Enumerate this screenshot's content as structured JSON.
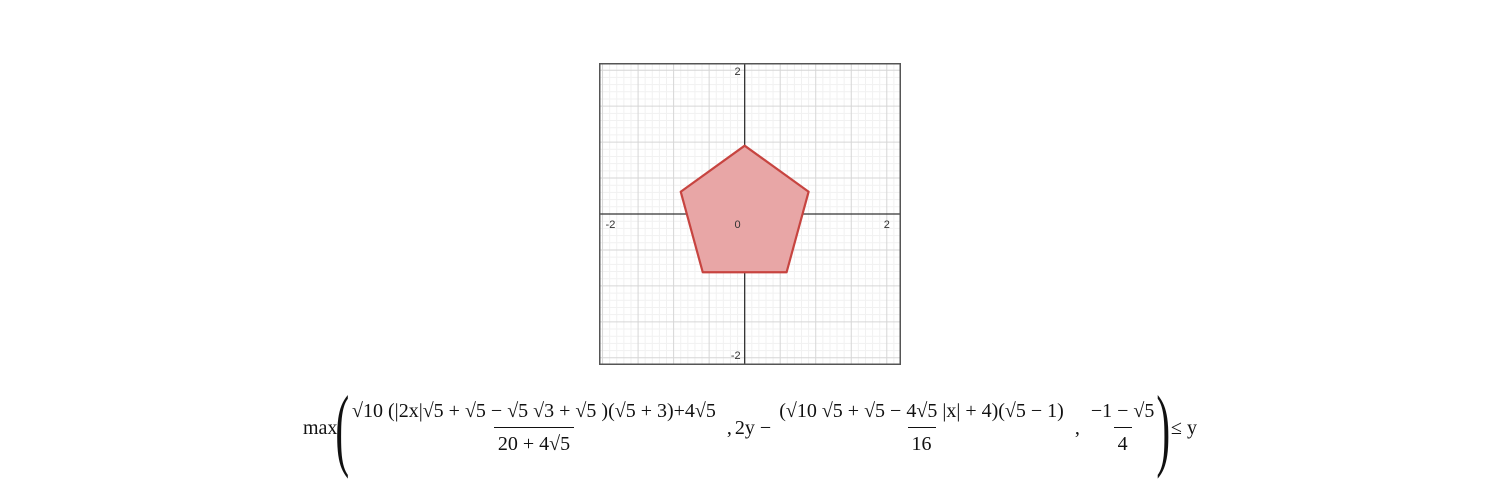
{
  "graph": {
    "x_range": [
      -2.05,
      2.2
    ],
    "y_range": [
      -2.1,
      2.1
    ],
    "x_tick_labels": [
      {
        "value": -2,
        "label": "-2"
      },
      {
        "value": 0,
        "label": "0"
      },
      {
        "value": 2,
        "label": "2"
      }
    ],
    "y_tick_labels": [
      {
        "value": 2,
        "label": "2"
      },
      {
        "value": -2,
        "label": "-2"
      }
    ],
    "grid": true,
    "polygon": {
      "shape": "regular pentagon",
      "vertices": [
        [
          0,
          0.95
        ],
        [
          0.9,
          0.31
        ],
        [
          0.59,
          -0.81
        ],
        [
          -0.59,
          -0.81
        ],
        [
          -0.9,
          0.31
        ]
      ],
      "fill_color": "#e8a6a6",
      "stroke_color": "#c74440"
    }
  },
  "formula": {
    "func": "max",
    "term1_num": "√10 (|2x|√5 + √5 − √5 √3 + √5 )(√5 + 3)+4√5",
    "term1_den": "20 + 4√5",
    "sep": ",",
    "term2_lead": "2y −",
    "term2_num": "(√10 √5 + √5 − 4√5 |x| + 4)(√5 − 1)",
    "term2_den": "16",
    "term3_num": "−1 − √5",
    "term3_den": "4",
    "relation": "≤ y"
  }
}
